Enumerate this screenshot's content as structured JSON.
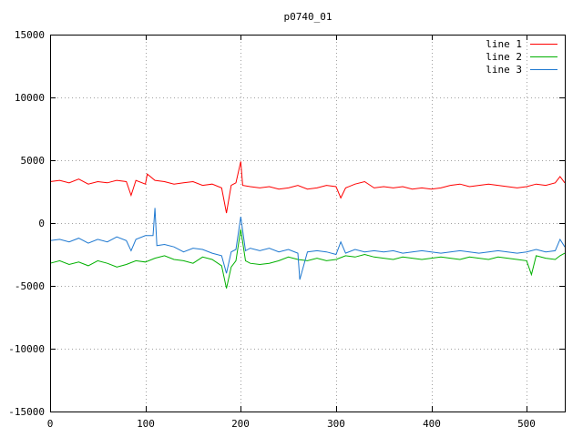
{
  "chart_data": {
    "type": "line",
    "title": "p0740_01",
    "xlabel": "",
    "ylabel": "",
    "xlim": [
      0,
      540
    ],
    "ylim": [
      -15000,
      15000
    ],
    "x_ticks": [
      "0",
      "100",
      "200",
      "300",
      "400",
      "500"
    ],
    "x_tick_values": [
      0,
      100,
      200,
      300,
      400,
      500
    ],
    "y_ticks": [
      "15000",
      "10000",
      "5000",
      "0",
      "-5000",
      "-10000",
      "-15000"
    ],
    "y_tick_values": [
      15000,
      10000,
      5000,
      0,
      -5000,
      -10000,
      -15000
    ],
    "grid": true,
    "legend_position": "top-right",
    "series": [
      {
        "name": "line 1",
        "color": "#ff0000",
        "x": [
          0,
          10,
          20,
          30,
          40,
          50,
          60,
          70,
          80,
          85,
          90,
          100,
          102,
          110,
          120,
          130,
          140,
          150,
          160,
          170,
          180,
          185,
          190,
          195,
          200,
          202,
          210,
          220,
          230,
          240,
          250,
          260,
          270,
          280,
          290,
          300,
          305,
          310,
          320,
          330,
          340,
          350,
          360,
          370,
          380,
          390,
          400,
          410,
          420,
          430,
          440,
          450,
          460,
          470,
          480,
          490,
          500,
          510,
          520,
          530,
          535,
          540
        ],
        "y": [
          3300,
          3400,
          3200,
          3500,
          3100,
          3300,
          3200,
          3400,
          3300,
          2200,
          3400,
          3100,
          3900,
          3400,
          3300,
          3100,
          3200,
          3300,
          3000,
          3100,
          2800,
          800,
          3000,
          3200,
          4900,
          3000,
          2900,
          2800,
          2900,
          2700,
          2800,
          3000,
          2700,
          2800,
          3000,
          2900,
          2000,
          2800,
          3100,
          3300,
          2800,
          2900,
          2800,
          2900,
          2700,
          2800,
          2700,
          2800,
          3000,
          3100,
          2900,
          3000,
          3100,
          3000,
          2900,
          2800,
          2900,
          3100,
          3000,
          3200,
          3700,
          3200
        ]
      },
      {
        "name": "line 2",
        "color": "#00b000",
        "x": [
          0,
          10,
          20,
          30,
          40,
          50,
          60,
          70,
          80,
          90,
          100,
          110,
          120,
          130,
          140,
          150,
          160,
          170,
          180,
          185,
          190,
          195,
          200,
          205,
          210,
          220,
          230,
          240,
          250,
          260,
          270,
          280,
          290,
          300,
          310,
          320,
          330,
          340,
          350,
          360,
          370,
          380,
          390,
          400,
          410,
          420,
          430,
          440,
          450,
          460,
          470,
          480,
          490,
          500,
          505,
          510,
          520,
          530,
          535,
          540
        ],
        "y": [
          -3200,
          -3000,
          -3300,
          -3100,
          -3400,
          -3000,
          -3200,
          -3500,
          -3300,
          -3000,
          -3100,
          -2800,
          -2600,
          -2900,
          -3000,
          -3200,
          -2700,
          -2900,
          -3400,
          -5200,
          -3500,
          -3000,
          -500,
          -3000,
          -3200,
          -3300,
          -3200,
          -3000,
          -2700,
          -2900,
          -3000,
          -2800,
          -3000,
          -2900,
          -2600,
          -2700,
          -2500,
          -2700,
          -2800,
          -2900,
          -2700,
          -2800,
          -2900,
          -2800,
          -2700,
          -2800,
          -2900,
          -2700,
          -2800,
          -2900,
          -2700,
          -2800,
          -2900,
          -3000,
          -4100,
          -2600,
          -2800,
          -2900,
          -2600,
          -2400
        ]
      },
      {
        "name": "line 3",
        "color": "#1e78d0",
        "x": [
          0,
          10,
          20,
          30,
          40,
          50,
          60,
          70,
          80,
          85,
          90,
          100,
          108,
          110,
          112,
          120,
          130,
          140,
          150,
          160,
          170,
          180,
          185,
          190,
          195,
          200,
          205,
          210,
          220,
          230,
          240,
          250,
          260,
          262,
          270,
          280,
          290,
          300,
          305,
          310,
          320,
          330,
          340,
          350,
          360,
          370,
          380,
          390,
          400,
          410,
          420,
          430,
          440,
          450,
          460,
          470,
          480,
          490,
          500,
          510,
          520,
          530,
          535,
          540
        ],
        "y": [
          -1400,
          -1300,
          -1500,
          -1200,
          -1600,
          -1300,
          -1500,
          -1100,
          -1400,
          -2200,
          -1300,
          -1000,
          -1000,
          1200,
          -1800,
          -1700,
          -1900,
          -2300,
          -2000,
          -2100,
          -2400,
          -2600,
          -4000,
          -2300,
          -2100,
          500,
          -2200,
          -2000,
          -2200,
          -2000,
          -2300,
          -2100,
          -2400,
          -4500,
          -2300,
          -2200,
          -2300,
          -2500,
          -1500,
          -2400,
          -2100,
          -2300,
          -2200,
          -2300,
          -2200,
          -2400,
          -2300,
          -2200,
          -2300,
          -2400,
          -2300,
          -2200,
          -2300,
          -2400,
          -2300,
          -2200,
          -2300,
          -2400,
          -2300,
          -2100,
          -2300,
          -2200,
          -1300,
          -1900
        ]
      }
    ]
  }
}
